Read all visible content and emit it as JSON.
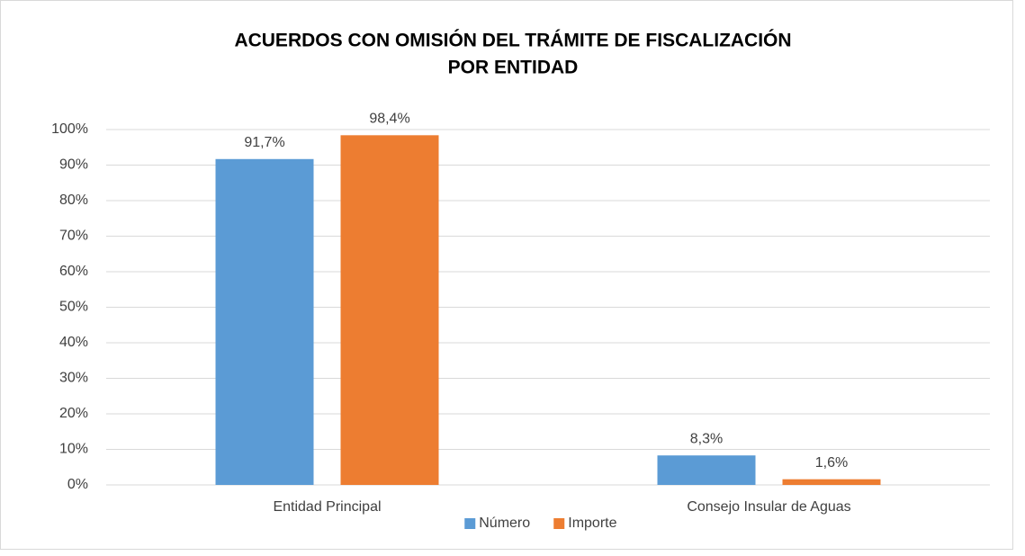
{
  "chart_data": {
    "type": "bar",
    "title": [
      "ACUERDOS CON OMISIÓN DEL TRÁMITE DE FISCALIZACIÓN",
      "POR ENTIDAD"
    ],
    "categories": [
      "Entidad Principal",
      "Consejo Insular de Aguas"
    ],
    "series": [
      {
        "name": "Número",
        "color": "#5b9bd5",
        "values": [
          91.7,
          8.3
        ],
        "value_labels": [
          "91,7%",
          "8,3%"
        ]
      },
      {
        "name": "Importe",
        "color": "#ed7d31",
        "values": [
          98.4,
          1.6
        ],
        "value_labels": [
          "98,4%",
          "1,6%"
        ]
      }
    ],
    "ylim": [
      0,
      100
    ],
    "yticks": [
      {
        "value": 0,
        "label": "0%"
      },
      {
        "value": 10,
        "label": "10%"
      },
      {
        "value": 20,
        "label": "20%"
      },
      {
        "value": 30,
        "label": "30%"
      },
      {
        "value": 40,
        "label": "40%"
      },
      {
        "value": 50,
        "label": "50%"
      },
      {
        "value": 60,
        "label": "60%"
      },
      {
        "value": 70,
        "label": "70%"
      },
      {
        "value": 80,
        "label": "80%"
      },
      {
        "value": 90,
        "label": "90%"
      },
      {
        "value": 100,
        "label": "100%"
      }
    ],
    "grid": true,
    "legend": "bottom"
  }
}
